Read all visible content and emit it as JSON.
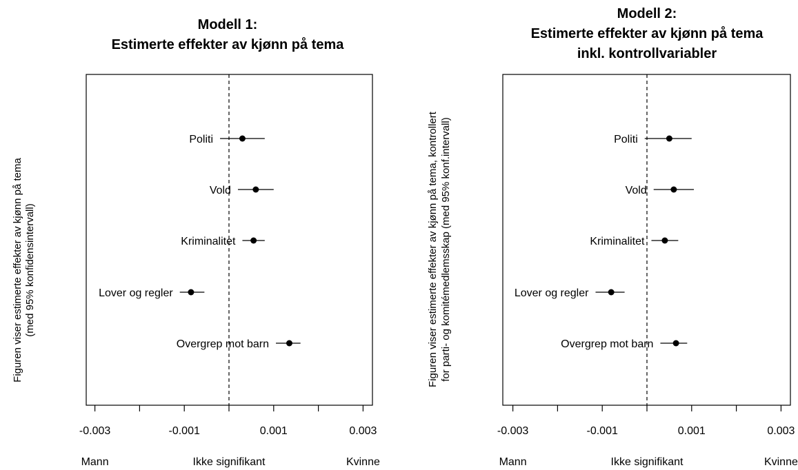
{
  "chart_data": [
    {
      "type": "scatter",
      "style": "point-with-error-bars",
      "title": [
        "Modell 1:",
        "Estimerte effekter av kjønn på tema"
      ],
      "ylabel": [
        "Figuren viser estimerte effekter av kjønn på tema",
        "(med 95% konfidensintervall)"
      ],
      "xlim": [
        -0.0033,
        0.0033
      ],
      "xticks": [
        "-0.003",
        "-0.001",
        "0.001",
        "0.003"
      ],
      "xtick_values": [
        -0.003,
        -0.002,
        -0.001,
        0.0,
        0.001,
        0.002,
        0.003
      ],
      "reference_line": 0.0,
      "bottom_labels": [
        "Mann",
        "Ikke signifikant",
        "Kvinne"
      ],
      "points": [
        {
          "label": "Politi",
          "estimate": 0.0003,
          "ci": [
            -0.0002,
            0.0008
          ]
        },
        {
          "label": "Vold",
          "estimate": 0.0006,
          "ci": [
            0.0002,
            0.001
          ]
        },
        {
          "label": "Kriminalitet",
          "estimate": 0.00055,
          "ci": [
            0.0003,
            0.0008
          ]
        },
        {
          "label": "Lover og regler",
          "estimate": -0.00085,
          "ci": [
            -0.0011,
            -0.00055
          ]
        },
        {
          "label": "Overgrep mot barn",
          "estimate": 0.00135,
          "ci": [
            0.00105,
            0.0016
          ]
        }
      ]
    },
    {
      "type": "scatter",
      "style": "point-with-error-bars",
      "title": [
        "Modell 2:",
        "Estimerte effekter av kjønn på tema",
        "inkl. kontrollvariabler"
      ],
      "ylabel": [
        "Figuren viser estimerte effekter av kjønn på tema, kontrollert",
        "for parti- og komitémedlemsskap (med 95% konf.intervall)"
      ],
      "xlim": [
        -0.0033,
        0.0033
      ],
      "xticks": [
        "-0.003",
        "-0.001",
        "0.001",
        "0.003"
      ],
      "xtick_values": [
        -0.003,
        -0.002,
        -0.001,
        0.0,
        0.001,
        0.002,
        0.003
      ],
      "reference_line": 0.0,
      "bottom_labels": [
        "Mann",
        "Ikke signifikant",
        "Kvinne"
      ],
      "points": [
        {
          "label": "Politi",
          "estimate": 0.0005,
          "ci": [
            -5e-05,
            0.001
          ]
        },
        {
          "label": "Vold",
          "estimate": 0.0006,
          "ci": [
            0.00015,
            0.00105
          ]
        },
        {
          "label": "Kriminalitet",
          "estimate": 0.0004,
          "ci": [
            0.0001,
            0.0007
          ]
        },
        {
          "label": "Lover og regler",
          "estimate": -0.0008,
          "ci": [
            -0.00115,
            -0.0005
          ]
        },
        {
          "label": "Overgrep mot barn",
          "estimate": 0.00065,
          "ci": [
            0.0003,
            0.0009
          ]
        }
      ]
    }
  ]
}
